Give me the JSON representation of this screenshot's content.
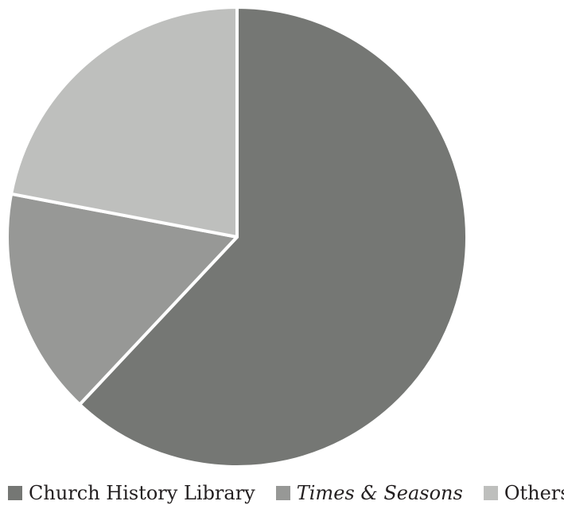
{
  "chart_data": {
    "type": "pie",
    "slices": [
      {
        "label": "Church History Library",
        "value": 62,
        "color": "#757774",
        "italic": false
      },
      {
        "label": "Times & Seasons",
        "value": 16,
        "color": "#979896",
        "italic": true
      },
      {
        "label": "Others",
        "value": 22,
        "color": "#bebfbd",
        "italic": false
      }
    ],
    "start_angle_deg": 0,
    "direction": "clockwise",
    "title": "",
    "legend_position": "bottom"
  }
}
